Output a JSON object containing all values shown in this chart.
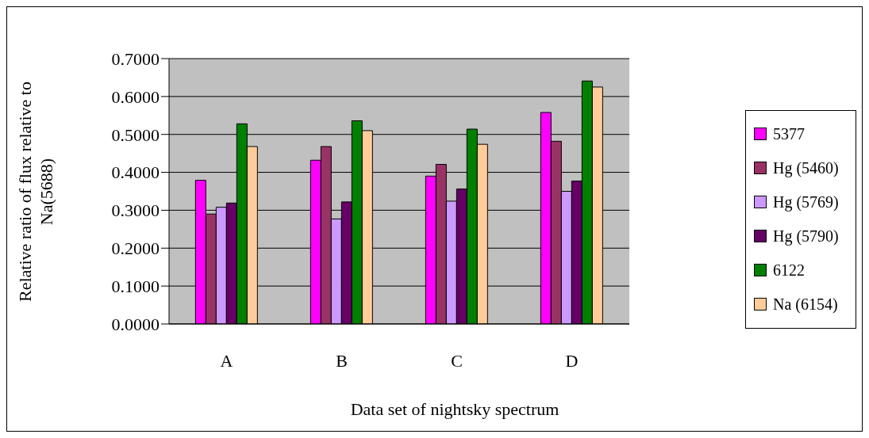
{
  "chart_data": {
    "type": "bar",
    "xlabel": "Data set of nightsky spectrum",
    "ylabel": "Relative ratio of flux relative to Na(5688)",
    "categories": [
      "A",
      "B",
      "C",
      "D"
    ],
    "series": [
      {
        "name": "5377",
        "color": "#ff00ff",
        "values": [
          0.379,
          0.432,
          0.39,
          0.558
        ]
      },
      {
        "name": "Hg (5460)",
        "color": "#993366",
        "values": [
          0.29,
          0.468,
          0.421,
          0.482
        ]
      },
      {
        "name": "Hg (5769)",
        "color": "#cc99ff",
        "values": [
          0.308,
          0.277,
          0.324,
          0.35
        ]
      },
      {
        "name": "Hg (5790)",
        "color": "#660066",
        "values": [
          0.319,
          0.322,
          0.356,
          0.377
        ]
      },
      {
        "name": "6122",
        "color": "#008000",
        "values": [
          0.528,
          0.536,
          0.514,
          0.641
        ]
      },
      {
        "name": "Na (6154)",
        "color": "#ffcc99",
        "values": [
          0.468,
          0.51,
          0.474,
          0.625
        ]
      }
    ],
    "ylim": [
      0,
      0.7
    ],
    "yticks": [
      {
        "value": 0,
        "label": "0.0000"
      },
      {
        "value": 0.1,
        "label": "0.1000"
      },
      {
        "value": 0.2,
        "label": "0.2000"
      },
      {
        "value": 0.3,
        "label": "0.3000"
      },
      {
        "value": 0.4,
        "label": "0.4000"
      },
      {
        "value": 0.5,
        "label": "0.5000"
      },
      {
        "value": 0.6,
        "label": "0.6000"
      },
      {
        "value": 0.7,
        "label": "0.7000"
      }
    ],
    "grid": "y",
    "legend": "right"
  }
}
